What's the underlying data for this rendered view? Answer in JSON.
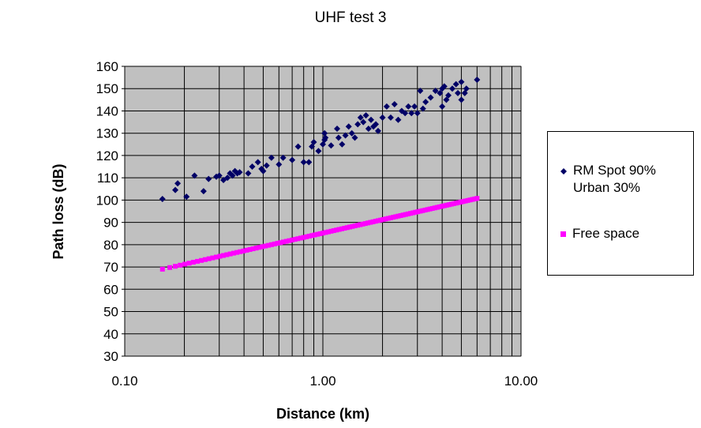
{
  "chart_data": {
    "type": "scatter",
    "title": "UHF test 3",
    "xlabel": "Distance (km)",
    "ylabel": "Path loss (dB)",
    "xscale": "log",
    "xlim": [
      0.1,
      10
    ],
    "ylim": [
      30,
      160
    ],
    "xticks": [
      "0.10",
      "1.00",
      "10.00"
    ],
    "yticks": [
      30,
      40,
      50,
      60,
      70,
      80,
      90,
      100,
      110,
      120,
      130,
      140,
      150,
      160
    ],
    "grid": true,
    "legend_position": "right",
    "series": [
      {
        "name": "RM Spot 90% Urban 30%",
        "name_lines": [
          "RM Spot 90%",
          "Urban 30%"
        ],
        "color": "#000066",
        "marker": "diamond",
        "points": [
          [
            0.155,
            100.5
          ],
          [
            0.18,
            104.5
          ],
          [
            0.185,
            107.5
          ],
          [
            0.205,
            101.5
          ],
          [
            0.225,
            111
          ],
          [
            0.25,
            104
          ],
          [
            0.265,
            109.5
          ],
          [
            0.29,
            110.5
          ],
          [
            0.3,
            111
          ],
          [
            0.315,
            109
          ],
          [
            0.33,
            110
          ],
          [
            0.34,
            112
          ],
          [
            0.35,
            111
          ],
          [
            0.36,
            113
          ],
          [
            0.37,
            112
          ],
          [
            0.38,
            112.5
          ],
          [
            0.42,
            112
          ],
          [
            0.44,
            115
          ],
          [
            0.47,
            117
          ],
          [
            0.49,
            114
          ],
          [
            0.5,
            113
          ],
          [
            0.52,
            115.5
          ],
          [
            0.55,
            119
          ],
          [
            0.6,
            116
          ],
          [
            0.63,
            119
          ],
          [
            0.7,
            118
          ],
          [
            0.75,
            124
          ],
          [
            0.8,
            117
          ],
          [
            0.85,
            117
          ],
          [
            0.88,
            124
          ],
          [
            0.9,
            126
          ],
          [
            0.95,
            122
          ],
          [
            1.0,
            125
          ],
          [
            1.02,
            127
          ],
          [
            1.02,
            130
          ],
          [
            1.03,
            128
          ],
          [
            1.1,
            124.5
          ],
          [
            1.18,
            132
          ],
          [
            1.2,
            128
          ],
          [
            1.25,
            125
          ],
          [
            1.3,
            129
          ],
          [
            1.35,
            133
          ],
          [
            1.4,
            130
          ],
          [
            1.45,
            128
          ],
          [
            1.5,
            134
          ],
          [
            1.55,
            137
          ],
          [
            1.6,
            135
          ],
          [
            1.65,
            138
          ],
          [
            1.7,
            132
          ],
          [
            1.75,
            136
          ],
          [
            1.8,
            133
          ],
          [
            1.85,
            134
          ],
          [
            1.9,
            131
          ],
          [
            2.0,
            137
          ],
          [
            2.1,
            142
          ],
          [
            2.2,
            137
          ],
          [
            2.3,
            143
          ],
          [
            2.4,
            136
          ],
          [
            2.5,
            140
          ],
          [
            2.6,
            139
          ],
          [
            2.7,
            142
          ],
          [
            2.8,
            139
          ],
          [
            2.9,
            142
          ],
          [
            3.0,
            139
          ],
          [
            3.1,
            149
          ],
          [
            3.2,
            141
          ],
          [
            3.3,
            144
          ],
          [
            3.5,
            146
          ],
          [
            3.7,
            149
          ],
          [
            3.9,
            148
          ],
          [
            4.0,
            150
          ],
          [
            4.0,
            142
          ],
          [
            4.1,
            151
          ],
          [
            4.2,
            145
          ],
          [
            4.3,
            147
          ],
          [
            4.5,
            150
          ],
          [
            4.7,
            152
          ],
          [
            4.8,
            148
          ],
          [
            5.0,
            153
          ],
          [
            5.0,
            145
          ],
          [
            5.2,
            148
          ],
          [
            5.3,
            150
          ],
          [
            6.0,
            154
          ]
        ]
      },
      {
        "name": "Free space",
        "color": "#ff00ff",
        "marker": "square",
        "formula_note": "85.2 + 20*log10(d)",
        "x_range": [
          0.155,
          6.0
        ],
        "count": 110
      }
    ]
  }
}
